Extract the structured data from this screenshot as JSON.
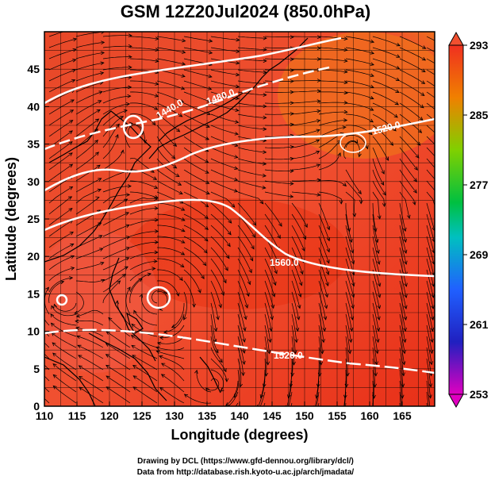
{
  "title": "GSM 12Z20Jul2024 (850.0hPa)",
  "xaxis": {
    "label": "Longitude (degrees)",
    "range": [
      110,
      170
    ],
    "ticks": [
      "110",
      "115",
      "120",
      "125",
      "130",
      "135",
      "140",
      "145",
      "150",
      "155",
      "160",
      "165"
    ]
  },
  "yaxis": {
    "label": "Latitude  (degrees)",
    "range": [
      0,
      50
    ],
    "ticks": [
      "0",
      "5",
      "10",
      "15",
      "20",
      "25",
      "30",
      "35",
      "40",
      "45"
    ]
  },
  "colorbar": {
    "ticks": [
      "293",
      "285",
      "277",
      "269",
      "261",
      "253"
    ],
    "min": 253,
    "max": 293
  },
  "contour_labels": [
    "1440.0",
    "1480.0",
    "1520.0",
    "1560.0",
    "1520.0"
  ],
  "credits": [
    "Drawing by DCL (https://www.gfd-dennou.org/library/dcl/)",
    "Data from http://database.rish.kyoto-u.ac.jp/arch/jmadata/"
  ],
  "colors": {
    "warm": "#e84020",
    "hot": "#f05a38",
    "coast": "#000000",
    "contour": "#ffffff"
  }
}
